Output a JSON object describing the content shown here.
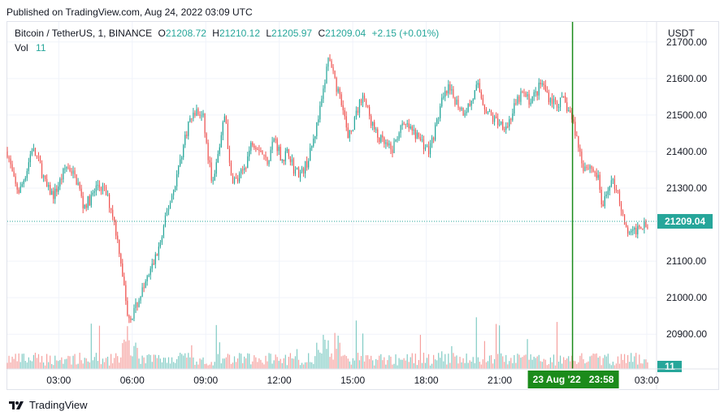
{
  "header": {
    "published": "Published on TradingView.com, Aug 24, 2022 03:09 UTC"
  },
  "legend": {
    "symbol": "Bitcoin / TetherUS, 1, BINANCE",
    "o_label": "O",
    "o": "21208.72",
    "h_label": "H",
    "h": "21210.12",
    "l_label": "L",
    "l": "21205.97",
    "c_label": "C",
    "c": "21209.04",
    "change": "+2.15 (+0.01%)",
    "vol_label": "Vol",
    "vol": "11"
  },
  "footer": {
    "brand": "TradingView"
  },
  "colors": {
    "up": "#26a69a",
    "down": "#ef5350",
    "up_vol": "#80cbc4",
    "down_vol": "#f5a09e",
    "crosshair": "#1b8b1b",
    "price_tag": "#26a69a"
  },
  "chart_data": {
    "type": "candlestick",
    "symbol": "Bitcoin / TetherUS",
    "interval": "1",
    "currency": "USDT",
    "y_ticks": [
      "21700.00",
      "21600.00",
      "21500.00",
      "21400.00",
      "21300.00",
      "21200.00",
      "21100.00",
      "21000.00",
      "20900.00"
    ],
    "y_tick_values": [
      21700,
      21600,
      21500,
      21400,
      21300,
      21200,
      21100,
      21000,
      20900
    ],
    "ylim": [
      20805,
      21755
    ],
    "x_ticks": [
      "03:00",
      "06:00",
      "09:00",
      "12:00",
      "15:00",
      "18:00",
      "21:00",
      "03:00"
    ],
    "x_tick_hours": [
      3,
      6,
      9,
      12,
      15,
      18,
      21,
      27
    ],
    "xlim_hours": [
      0.9,
      27.4
    ],
    "last_price": "21209.04",
    "last_volume": "11",
    "crosshair_label": "23 Aug '22   23:58",
    "crosshair_hour": 23.97,
    "close_path": [
      [
        0.9,
        21400
      ],
      [
        1.2,
        21310
      ],
      [
        1.4,
        21290
      ],
      [
        1.7,
        21350
      ],
      [
        1.9,
        21410
      ],
      [
        2.2,
        21370
      ],
      [
        2.5,
        21300
      ],
      [
        2.8,
        21280
      ],
      [
        3.0,
        21310
      ],
      [
        3.3,
        21360
      ],
      [
        3.5,
        21350
      ],
      [
        3.8,
        21310
      ],
      [
        4.0,
        21250
      ],
      [
        4.3,
        21270
      ],
      [
        4.6,
        21310
      ],
      [
        4.9,
        21290
      ],
      [
        5.2,
        21230
      ],
      [
        5.5,
        21120
      ],
      [
        5.8,
        20960
      ],
      [
        6.0,
        20950
      ],
      [
        6.3,
        21000
      ],
      [
        6.6,
        21050
      ],
      [
        6.9,
        21100
      ],
      [
        7.2,
        21160
      ],
      [
        7.4,
        21230
      ],
      [
        7.7,
        21300
      ],
      [
        8.0,
        21390
      ],
      [
        8.3,
        21480
      ],
      [
        8.6,
        21510
      ],
      [
        8.9,
        21490
      ],
      [
        9.1,
        21380
      ],
      [
        9.3,
        21310
      ],
      [
        9.6,
        21430
      ],
      [
        9.8,
        21510
      ],
      [
        10.0,
        21330
      ],
      [
        10.3,
        21320
      ],
      [
        10.6,
        21360
      ],
      [
        10.9,
        21430
      ],
      [
        11.2,
        21410
      ],
      [
        11.5,
        21370
      ],
      [
        11.8,
        21440
      ],
      [
        12.1,
        21380
      ],
      [
        12.4,
        21400
      ],
      [
        12.6,
        21350
      ],
      [
        12.9,
        21340
      ],
      [
        13.2,
        21380
      ],
      [
        13.5,
        21460
      ],
      [
        13.8,
        21560
      ],
      [
        14.0,
        21660
      ],
      [
        14.3,
        21580
      ],
      [
        14.6,
        21530
      ],
      [
        14.8,
        21430
      ],
      [
        15.1,
        21490
      ],
      [
        15.4,
        21560
      ],
      [
        15.7,
        21490
      ],
      [
        16.0,
        21440
      ],
      [
        16.3,
        21420
      ],
      [
        16.6,
        21400
      ],
      [
        16.9,
        21460
      ],
      [
        17.2,
        21470
      ],
      [
        17.5,
        21450
      ],
      [
        17.8,
        21430
      ],
      [
        18.1,
        21400
      ],
      [
        18.4,
        21470
      ],
      [
        18.6,
        21530
      ],
      [
        18.9,
        21570
      ],
      [
        19.2,
        21540
      ],
      [
        19.5,
        21510
      ],
      [
        19.8,
        21530
      ],
      [
        20.1,
        21580
      ],
      [
        20.4,
        21520
      ],
      [
        20.7,
        21490
      ],
      [
        21.0,
        21480
      ],
      [
        21.3,
        21470
      ],
      [
        21.6,
        21520
      ],
      [
        21.9,
        21560
      ],
      [
        22.2,
        21540
      ],
      [
        22.5,
        21560
      ],
      [
        22.7,
        21590
      ],
      [
        23.0,
        21550
      ],
      [
        23.3,
        21530
      ],
      [
        23.6,
        21540
      ],
      [
        23.9,
        21500
      ],
      [
        24.1,
        21450
      ],
      [
        24.4,
        21360
      ],
      [
        24.7,
        21360
      ],
      [
        25.0,
        21330
      ],
      [
        25.2,
        21240
      ],
      [
        25.5,
        21320
      ],
      [
        25.8,
        21300
      ],
      [
        26.1,
        21190
      ],
      [
        26.4,
        21170
      ],
      [
        26.7,
        21200
      ],
      [
        27.1,
        21209
      ]
    ],
    "volume_max": 180
  }
}
